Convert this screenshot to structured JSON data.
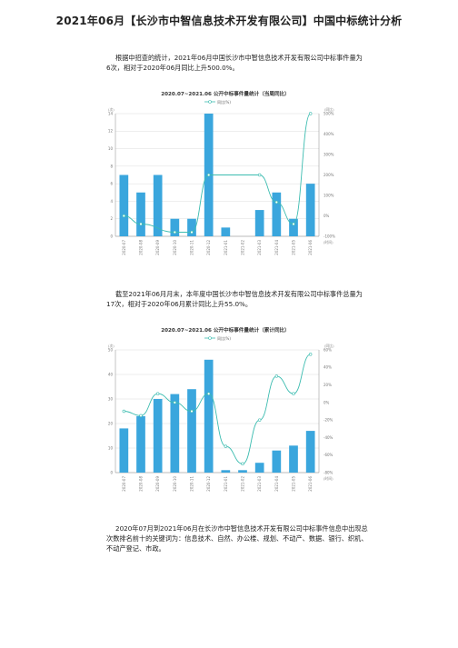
{
  "title": "2021年06月【长沙市中智信息技术开发有限公司】中国中标统计分析",
  "paragraphs": {
    "p1": "根据中招查的统计，2021年06月中国长沙市中智信息技术开发有限公司中标事件量为6次，相对于2020年06月同比上升500.0%。",
    "p2": "截至2021年06月月末，本年度中国长沙市中智信息技术开发有限公司中标事件总量为17次，相对于2020年06月累计同比上升55.0%。",
    "p3": "2020年07月到2021年06月在长沙市中智信息技术开发有限公司中标事件信息中出现总次数排名前十的关键词为：信息技术、自然、办公楼、规划、不动产、数据、银行、织机、不动产登记、市政。"
  },
  "colors": {
    "bar": "#3aa6dd",
    "line": "#3cbcb0",
    "grid": "#cccccc",
    "axis": "#888888"
  },
  "chart_data": [
    {
      "type": "bar",
      "title": "2020.07~2021.06 公开中标事件量统计（当周同比）",
      "legend": "同比(%)",
      "ylabel_left": "(次)",
      "ylabel_right": "(同比)",
      "xlabel_right": "(时间)",
      "categories": [
        "2020-07",
        "2020-08",
        "2020-09",
        "2020-10",
        "2020-11",
        "2020-12",
        "2021-01",
        "2021-02",
        "2021-03",
        "2021-04",
        "2021-05",
        "2021-06"
      ],
      "values": [
        7,
        5,
        7,
        2,
        2,
        14,
        1,
        0,
        3,
        5,
        2,
        6
      ],
      "line_values": [
        0,
        -40,
        null,
        -80,
        -80,
        200,
        null,
        null,
        200,
        66.7,
        -40,
        500
      ],
      "ylim": [
        0,
        14
      ],
      "yticks": [
        0,
        2,
        4,
        6,
        8,
        10,
        12,
        14
      ],
      "ylim_right": [
        -100,
        500
      ],
      "yticks_right_labels": [
        "-100%",
        "0%",
        "100%",
        "200%",
        "300%",
        "400%",
        "500%"
      ]
    },
    {
      "type": "bar",
      "title": "2020.07~2021.06 公开中标事件量统计（累计同比）",
      "legend": "同比(%)",
      "ylabel_left": "(次)",
      "ylabel_right": "(同比)",
      "xlabel_right": "(时间)",
      "categories": [
        "2020-07",
        "2020-08",
        "2020-09",
        "2020-10",
        "2020-11",
        "2020-12",
        "2021-01",
        "2021-02",
        "2021-03",
        "2021-04",
        "2021-05",
        "2021-06"
      ],
      "values": [
        18,
        23,
        30,
        32,
        34,
        46,
        1,
        1,
        4,
        9,
        11,
        17
      ],
      "line_values": [
        -10,
        -15,
        10,
        0,
        -10,
        10,
        -50,
        -70,
        -20,
        30,
        10,
        55
      ],
      "ylim": [
        0,
        50
      ],
      "yticks": [
        0,
        10,
        20,
        30,
        40,
        50
      ],
      "yticks_labels": [
        "0",
        "10",
        "20",
        "30",
        "40",
        "50"
      ],
      "ylim_right": [
        -80,
        60
      ],
      "yticks_right_labels": [
        "-80%",
        "-60%",
        "-40%",
        "-20%",
        "0%",
        "20%",
        "40%",
        "60%"
      ]
    }
  ]
}
